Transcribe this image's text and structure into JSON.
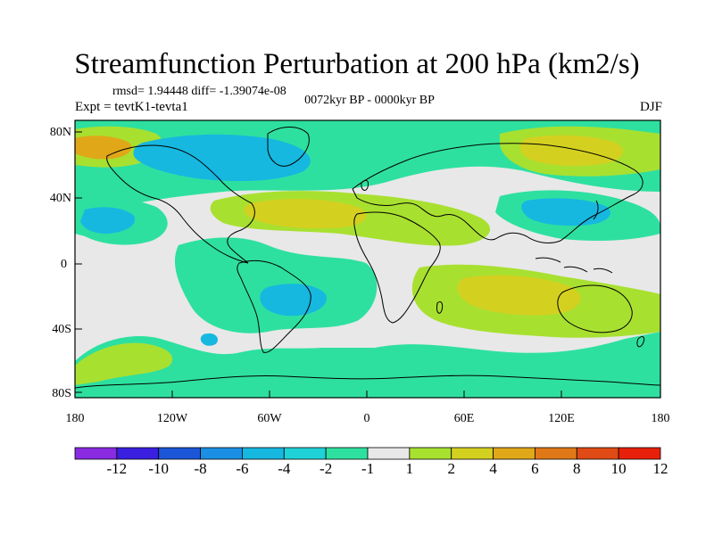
{
  "title": "Streamfunction Perturbation at 200 hPa (km2/s)",
  "stats": "rmsd= 1.94448  diff= -1.39074e-08",
  "experiment": "Expt = tevtK1-tevta1",
  "period": "0072kyr BP - 0000kyr BP",
  "season": "DJF",
  "latitude_labels": [
    "80N",
    "40N",
    "0",
    "40S",
    "80S"
  ],
  "longitude_labels": [
    "180",
    "120W",
    "60W",
    "0",
    "60E",
    "120E",
    "180"
  ],
  "colorbar": {
    "labels": [
      "-12",
      "-10",
      "-8",
      "-6",
      "-4",
      "-2",
      "-1",
      "1",
      "2",
      "4",
      "6",
      "8",
      "10",
      "12"
    ],
    "colors": [
      "#8a2be2",
      "#3a1fe0",
      "#1c56d8",
      "#1a8fe4",
      "#16b8e0",
      "#1ed2d8",
      "#2ee0a0",
      "#e8e8e8",
      "#a8e030",
      "#d4d020",
      "#e0a818",
      "#e07818",
      "#e04a14",
      "#e8200a"
    ]
  },
  "map_colors": {
    "ocean_background": "#e8e8e8",
    "coastline": "#000000"
  }
}
